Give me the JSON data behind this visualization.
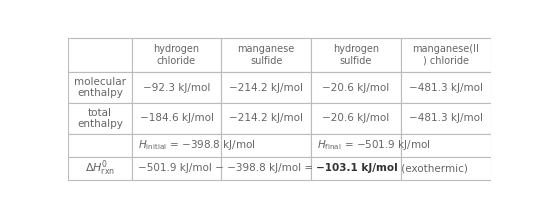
{
  "col_headers": [
    "hydrogen\nchloride",
    "manganese\nsulfide",
    "hydrogen\nsulfide",
    "manganese(II\n) chloride"
  ],
  "mol_enthalpy": [
    "−92.3 kJ/mol",
    "−214.2 kJ/mol",
    "−20.6 kJ/mol",
    "−481.3 kJ/mol"
  ],
  "total_enthalpy": [
    "−184.6 kJ/mol",
    "−214.2 kJ/mol",
    "−20.6 kJ/mol",
    "−481.3 kJ/mol"
  ],
  "background": "#ffffff",
  "border_color": "#bbbbbb",
  "text_color": "#666666",
  "fig_w": 5.45,
  "fig_h": 2.16,
  "dpi": 100
}
